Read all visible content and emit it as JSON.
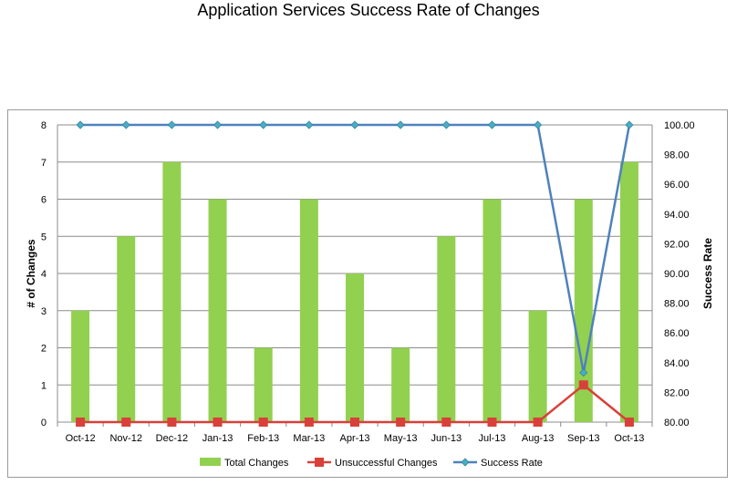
{
  "chart_data": {
    "type": "bar",
    "title": "Application Services Success Rate of Changes",
    "categories": [
      "Oct-12",
      "Nov-12",
      "Dec-12",
      "Jan-13",
      "Feb-13",
      "Mar-13",
      "Apr-13",
      "May-13",
      "Jun-13",
      "Jul-13",
      "Aug-13",
      "Sep-13",
      "Oct-13"
    ],
    "series": [
      {
        "name": "Total Changes",
        "type": "bar",
        "axis": "left",
        "color": "#92d050",
        "values": [
          3,
          5,
          7,
          6,
          2,
          6,
          4,
          2,
          5,
          6,
          3,
          6,
          7
        ]
      },
      {
        "name": "Unsuccessful Changes",
        "type": "line",
        "axis": "left",
        "color": "#d9403a",
        "marker": "square",
        "values": [
          0,
          0,
          0,
          0,
          0,
          0,
          0,
          0,
          0,
          0,
          0,
          1,
          0
        ]
      },
      {
        "name": "Success Rate",
        "type": "line",
        "axis": "right",
        "color": "#4f81bd",
        "marker": "diamond",
        "values": [
          100,
          100,
          100,
          100,
          100,
          100,
          100,
          100,
          100,
          100,
          100,
          83.33,
          100
        ]
      }
    ],
    "ylabel": "# of Changes",
    "ylim": [
      0,
      8
    ],
    "yticks": [
      "0",
      "1",
      "2",
      "3",
      "4",
      "5",
      "6",
      "7",
      "8"
    ],
    "y2label": "Success Rate",
    "y2lim": [
      80,
      100
    ],
    "y2ticks": [
      "80.00",
      "82.00",
      "84.00",
      "86.00",
      "88.00",
      "90.00",
      "92.00",
      "94.00",
      "96.00",
      "98.00",
      "100.00"
    ],
    "grid": true,
    "legend_position": "bottom"
  }
}
